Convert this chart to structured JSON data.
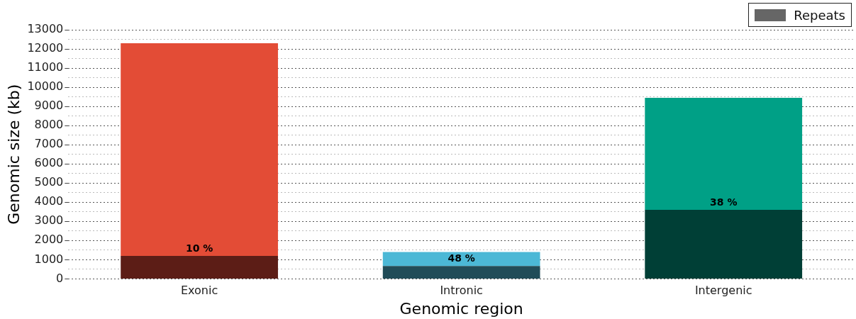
{
  "chart_data": {
    "type": "bar",
    "stacked": true,
    "xlabel": "Genomic region",
    "ylabel": "Genomic size (kb)",
    "categories": [
      "Exonic",
      "Intronic",
      "Intergenic"
    ],
    "series": [
      {
        "name": "Repeats",
        "color": "#666666",
        "colors": [
          "#5c1d16",
          "#214c58",
          "#003f36"
        ],
        "values": [
          1200,
          670,
          3600
        ]
      },
      {
        "colors": [
          "#e34c36",
          "#4cb8d6",
          "#00a086"
        ],
        "values": [
          11100,
          730,
          5850
        ]
      }
    ],
    "ylim": [
      0,
      13000
    ],
    "yticks": [
      0,
      {
        "value": 500,
        "label": null
      },
      1000,
      {
        "value": 1500,
        "label": null
      },
      2000,
      {
        "value": 2500,
        "label": null
      },
      3000,
      {
        "value": 3500,
        "label": null
      },
      4000,
      {
        "value": 4500,
        "label": null
      },
      5000,
      {
        "value": 5500,
        "label": null
      },
      6000,
      {
        "value": 6500,
        "label": null
      },
      7000,
      {
        "value": 7500,
        "label": null
      },
      8000,
      {
        "value": 8500,
        "label": null
      },
      9000,
      {
        "value": 9500,
        "label": null
      },
      10000,
      {
        "value": 10500,
        "label": null
      },
      11000,
      {
        "value": 11500,
        "label": null
      },
      12000,
      {
        "value": 12500,
        "label": null
      },
      13000
    ],
    "grid": "y",
    "legend": "top right",
    "annotations": [
      {
        "text": "10 %",
        "x": "Exonic",
        "y": 1200
      },
      {
        "text": "48 %",
        "x": "Intronic",
        "y": 670
      },
      {
        "text": "38 %",
        "x": "Intergenic",
        "y": 3600
      }
    ]
  }
}
